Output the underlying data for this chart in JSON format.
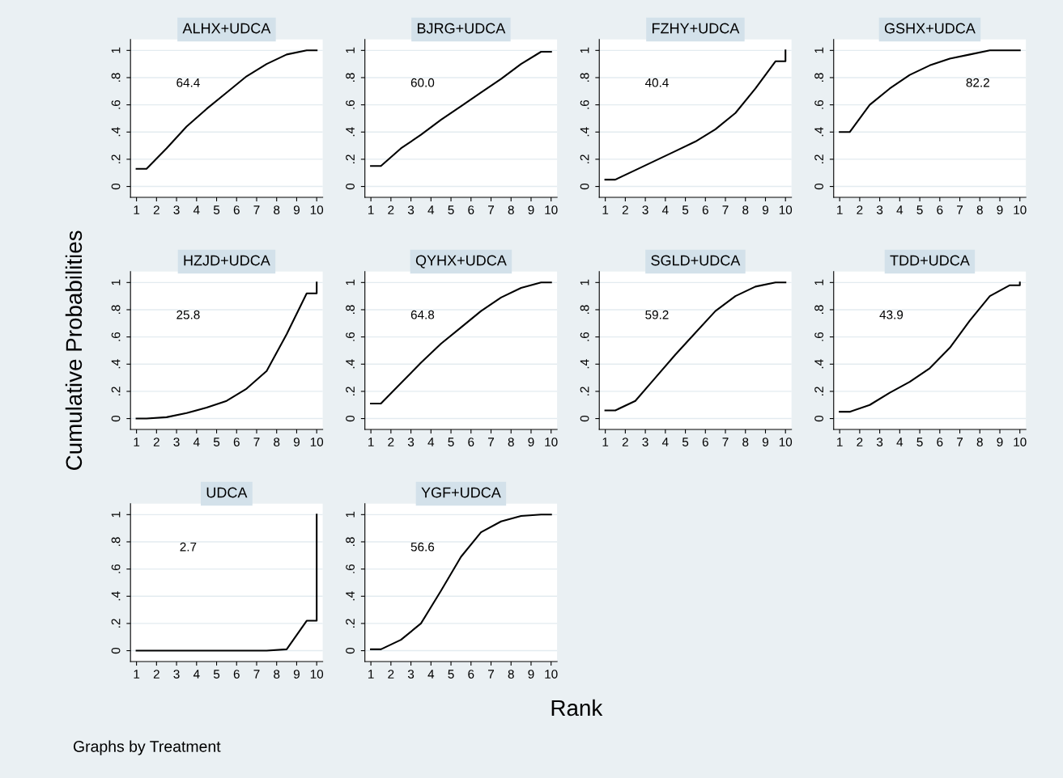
{
  "chart_data": [
    {
      "type": "line",
      "title": "ALHX+UDCA",
      "x": [
        1,
        1.5,
        2.5,
        3.5,
        4.5,
        5.5,
        6.5,
        7.5,
        8.5,
        9.5,
        10
      ],
      "series": [
        {
          "color": "#000000",
          "values": [
            0.13,
            0.13,
            0.28,
            0.44,
            0.57,
            0.69,
            0.81,
            0.9,
            0.97,
            1.0,
            1.0
          ]
        }
      ],
      "annotations": [
        "64.4"
      ],
      "xlim": [
        0.7,
        10.3
      ],
      "ylim": [
        -0.08,
        1.08
      ],
      "xticks": [
        1,
        2,
        3,
        4,
        5,
        6,
        7,
        8,
        9,
        10
      ],
      "yticks": [
        0,
        {
          "value": 0.2,
          "label": ".2"
        },
        {
          "value": 0.4,
          "label": ".4"
        },
        {
          "value": 0.6,
          "label": ".6"
        },
        {
          "value": 0.8,
          "label": ".8"
        },
        1
      ],
      "grid": "y",
      "marker": "none",
      "line_style": "solid"
    },
    {
      "type": "line",
      "title": "BJRG+UDCA",
      "x": [
        1,
        1.5,
        2.5,
        3.5,
        4.5,
        5.5,
        6.5,
        7.5,
        8.5,
        9.5,
        10
      ],
      "series": [
        {
          "color": "#000000",
          "values": [
            0.15,
            0.15,
            0.28,
            0.38,
            0.49,
            0.59,
            0.69,
            0.79,
            0.9,
            0.99,
            0.99
          ]
        }
      ],
      "annotations": [
        "60.0"
      ],
      "xlim": [
        0.7,
        10.3
      ],
      "ylim": [
        -0.08,
        1.08
      ],
      "xticks": [
        1,
        2,
        3,
        4,
        5,
        6,
        7,
        8,
        9,
        10
      ],
      "yticks": [
        0,
        {
          "value": 0.2,
          "label": ".2"
        },
        {
          "value": 0.4,
          "label": ".4"
        },
        {
          "value": 0.6,
          "label": ".6"
        },
        {
          "value": 0.8,
          "label": ".8"
        },
        1
      ],
      "grid": "y",
      "marker": "none",
      "line_style": "solid"
    },
    {
      "type": "line",
      "title": "FZHY+UDCA",
      "x": [
        1,
        1.5,
        2.5,
        3.5,
        4.5,
        5.5,
        6.5,
        7.5,
        8.5,
        9.5,
        10,
        10
      ],
      "series": [
        {
          "color": "#000000",
          "values": [
            0.05,
            0.05,
            0.12,
            0.19,
            0.26,
            0.33,
            0.42,
            0.54,
            0.72,
            0.92,
            0.92,
            1.0
          ]
        }
      ],
      "annotations": [
        "40.4"
      ],
      "xlim": [
        0.7,
        10.3
      ],
      "ylim": [
        -0.08,
        1.08
      ],
      "xticks": [
        1,
        2,
        3,
        4,
        5,
        6,
        7,
        8,
        9,
        10
      ],
      "yticks": [
        0,
        {
          "value": 0.2,
          "label": ".2"
        },
        {
          "value": 0.4,
          "label": ".4"
        },
        {
          "value": 0.6,
          "label": ".6"
        },
        {
          "value": 0.8,
          "label": ".8"
        },
        1
      ],
      "grid": "y",
      "marker": "none",
      "line_style": "solid"
    },
    {
      "type": "line",
      "title": "GSHX+UDCA",
      "x": [
        1,
        1.5,
        2.5,
        3.5,
        4.5,
        5.5,
        6.5,
        7.5,
        8.5,
        9.5,
        10
      ],
      "series": [
        {
          "color": "#000000",
          "values": [
            0.4,
            0.4,
            0.6,
            0.72,
            0.82,
            0.89,
            0.94,
            0.97,
            1.0,
            1.0,
            1.0
          ]
        }
      ],
      "annotations": [
        "82.2"
      ],
      "xlim": [
        0.7,
        10.3
      ],
      "ylim": [
        -0.08,
        1.08
      ],
      "xticks": [
        1,
        2,
        3,
        4,
        5,
        6,
        7,
        8,
        9,
        10
      ],
      "yticks": [
        0,
        {
          "value": 0.2,
          "label": ".2"
        },
        {
          "value": 0.4,
          "label": ".4"
        },
        {
          "value": 0.6,
          "label": ".6"
        },
        {
          "value": 0.8,
          "label": ".8"
        },
        1
      ],
      "grid": "y",
      "marker": "none",
      "line_style": "solid"
    },
    {
      "type": "line",
      "title": "HZJD+UDCA",
      "ylabel": "Cumulative Probabilities",
      "x": [
        1,
        1.5,
        2.5,
        3.5,
        4.5,
        5.5,
        6.5,
        7.5,
        8.5,
        9.5,
        10,
        10
      ],
      "series": [
        {
          "color": "#000000",
          "values": [
            0.0,
            0.0,
            0.01,
            0.04,
            0.08,
            0.13,
            0.22,
            0.35,
            0.62,
            0.92,
            0.92,
            1.0
          ]
        }
      ],
      "annotations": [
        "25.8"
      ],
      "xlim": [
        0.7,
        10.3
      ],
      "ylim": [
        -0.08,
        1.08
      ],
      "xticks": [
        1,
        2,
        3,
        4,
        5,
        6,
        7,
        8,
        9,
        10
      ],
      "yticks": [
        0,
        {
          "value": 0.2,
          "label": ".2"
        },
        {
          "value": 0.4,
          "label": ".4"
        },
        {
          "value": 0.6,
          "label": ".6"
        },
        {
          "value": 0.8,
          "label": ".8"
        },
        1
      ],
      "grid": "y",
      "marker": "none",
      "line_style": "solid"
    },
    {
      "type": "line",
      "title": "QYHX+UDCA",
      "x": [
        1,
        1.5,
        2.5,
        3.5,
        4.5,
        5.5,
        6.5,
        7.5,
        8.5,
        9.5,
        10
      ],
      "series": [
        {
          "color": "#000000",
          "values": [
            0.11,
            0.11,
            0.26,
            0.41,
            0.55,
            0.67,
            0.79,
            0.89,
            0.96,
            1.0,
            1.0
          ]
        }
      ],
      "annotations": [
        "64.8"
      ],
      "xlim": [
        0.7,
        10.3
      ],
      "ylim": [
        -0.08,
        1.08
      ],
      "xticks": [
        1,
        2,
        3,
        4,
        5,
        6,
        7,
        8,
        9,
        10
      ],
      "yticks": [
        0,
        {
          "value": 0.2,
          "label": ".2"
        },
        {
          "value": 0.4,
          "label": ".4"
        },
        {
          "value": 0.6,
          "label": ".6"
        },
        {
          "value": 0.8,
          "label": ".8"
        },
        1
      ],
      "grid": "y",
      "marker": "none",
      "line_style": "solid"
    },
    {
      "type": "line",
      "title": "SGLD+UDCA",
      "x": [
        1,
        1.5,
        2.5,
        3.5,
        4.5,
        5.5,
        6.5,
        7.5,
        8.5,
        9.5,
        10
      ],
      "series": [
        {
          "color": "#000000",
          "values": [
            0.06,
            0.06,
            0.13,
            0.3,
            0.47,
            0.63,
            0.79,
            0.9,
            0.97,
            1.0,
            1.0
          ]
        }
      ],
      "annotations": [
        "59.2"
      ],
      "xlim": [
        0.7,
        10.3
      ],
      "ylim": [
        -0.08,
        1.08
      ],
      "xticks": [
        1,
        2,
        3,
        4,
        5,
        6,
        7,
        8,
        9,
        10
      ],
      "yticks": [
        0,
        {
          "value": 0.2,
          "label": ".2"
        },
        {
          "value": 0.4,
          "label": ".4"
        },
        {
          "value": 0.6,
          "label": ".6"
        },
        {
          "value": 0.8,
          "label": ".8"
        },
        1
      ],
      "grid": "y",
      "marker": "none",
      "line_style": "solid"
    },
    {
      "type": "line",
      "title": "TDD+UDCA",
      "x": [
        1,
        1.5,
        2.5,
        3.5,
        4.5,
        5.5,
        6.5,
        7.5,
        8.5,
        9.5,
        10,
        10
      ],
      "series": [
        {
          "color": "#000000",
          "values": [
            0.05,
            0.05,
            0.1,
            0.19,
            0.27,
            0.37,
            0.52,
            0.72,
            0.9,
            0.98,
            0.98,
            1.0
          ]
        }
      ],
      "annotations": [
        "43.9"
      ],
      "xlim": [
        0.7,
        10.3
      ],
      "ylim": [
        -0.08,
        1.08
      ],
      "xticks": [
        1,
        2,
        3,
        4,
        5,
        6,
        7,
        8,
        9,
        10
      ],
      "yticks": [
        0,
        {
          "value": 0.2,
          "label": ".2"
        },
        {
          "value": 0.4,
          "label": ".4"
        },
        {
          "value": 0.6,
          "label": ".6"
        },
        {
          "value": 0.8,
          "label": ".8"
        },
        1
      ],
      "grid": "y",
      "marker": "none",
      "line_style": "solid"
    },
    {
      "type": "line",
      "title": "UDCA",
      "x": [
        1,
        1.5,
        2.5,
        3.5,
        4.5,
        5.5,
        6.5,
        7.5,
        8.5,
        9.5,
        10,
        10
      ],
      "series": [
        {
          "color": "#000000",
          "values": [
            0.0,
            0.0,
            0.0,
            0.0,
            0.0,
            0.0,
            0.0,
            0.0,
            0.01,
            0.22,
            0.22,
            1.0
          ]
        }
      ],
      "annotations": [
        "2.7",
        "Graphs by Treatment"
      ],
      "xlim": [
        0.7,
        10.3
      ],
      "ylim": [
        -0.08,
        1.08
      ],
      "xticks": [
        1,
        2,
        3,
        4,
        5,
        6,
        7,
        8,
        9,
        10
      ],
      "yticks": [
        0,
        {
          "value": 0.2,
          "label": ".2"
        },
        {
          "value": 0.4,
          "label": ".4"
        },
        {
          "value": 0.6,
          "label": ".6"
        },
        {
          "value": 0.8,
          "label": ".8"
        },
        1
      ],
      "grid": "y",
      "marker": "none",
      "line_style": "solid"
    },
    {
      "type": "line",
      "title": "YGF+UDCA",
      "xlabel": "Rank",
      "x": [
        1,
        1.5,
        2.5,
        3.5,
        4.5,
        5.5,
        6.5,
        7.5,
        8.5,
        9.5,
        10
      ],
      "series": [
        {
          "color": "#000000",
          "values": [
            0.01,
            0.01,
            0.08,
            0.2,
            0.44,
            0.69,
            0.87,
            0.95,
            0.99,
            1.0,
            1.0
          ]
        }
      ],
      "annotations": [
        "56.6"
      ],
      "xlim": [
        0.7,
        10.3
      ],
      "ylim": [
        -0.08,
        1.08
      ],
      "xticks": [
        1,
        2,
        3,
        4,
        5,
        6,
        7,
        8,
        9,
        10
      ],
      "yticks": [
        0,
        {
          "value": 0.2,
          "label": ".2"
        },
        {
          "value": 0.4,
          "label": ".4"
        },
        {
          "value": 0.6,
          "label": ".6"
        },
        {
          "value": 0.8,
          "label": ".8"
        },
        1
      ],
      "grid": "y",
      "marker": "none",
      "line_style": "solid"
    }
  ]
}
